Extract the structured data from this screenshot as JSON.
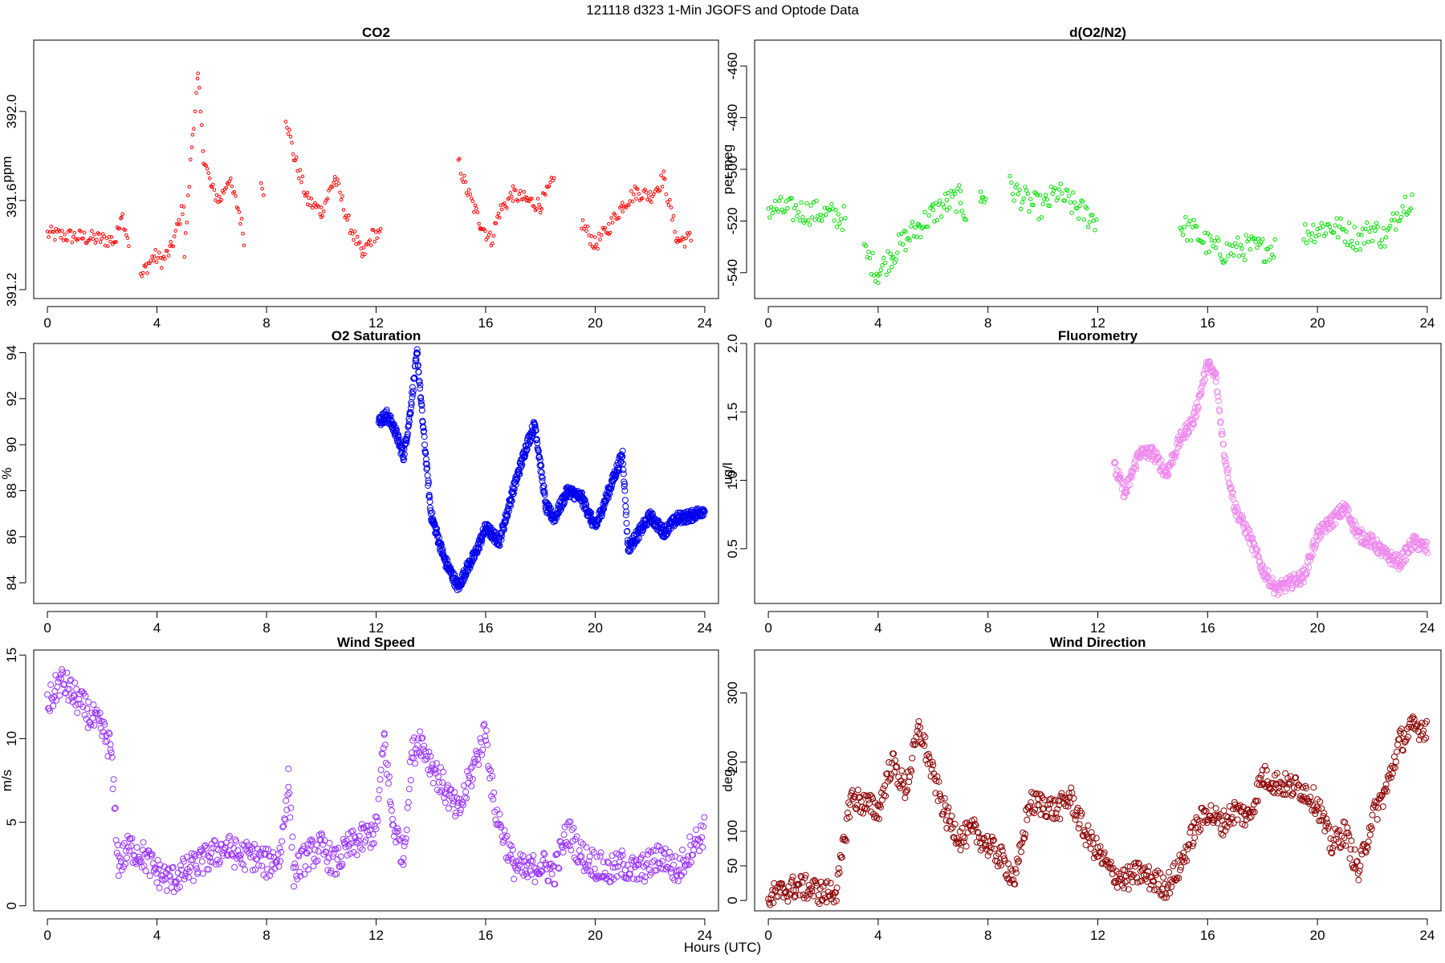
{
  "figure": {
    "title": "121118   d323   1-Min  JGOFS and Optode Data",
    "xlabel": "Hours (UTC)"
  },
  "chart_data": [
    {
      "id": "co2",
      "type": "scatter",
      "title": "CO2",
      "ylabel": "ppm",
      "color": "#ff0000",
      "xlim": [
        -0.5,
        24.5
      ],
      "ylim": [
        391.16,
        392.32
      ],
      "xticks": [
        0,
        4,
        8,
        12,
        16,
        20,
        24
      ],
      "yticks": [
        391.2,
        391.6,
        392.0
      ],
      "ytick_labels": [
        "391.2",
        "391.6",
        "392.0"
      ],
      "series": [
        {
          "x": [
            0,
            2.5,
            2.7,
            3.0
          ],
          "values": [
            391.45,
            391.42,
            391.55,
            391.4
          ],
          "name": "seg1"
        },
        {
          "x": [
            3.4,
            3.6,
            3.9,
            4.2,
            4.5,
            4.8,
            5.0
          ],
          "values": [
            391.25,
            391.3,
            391.35,
            391.33,
            391.38,
            391.5,
            391.6
          ],
          "name": "seg2"
        },
        {
          "x": [
            5.0,
            5.3,
            5.5,
            5.7,
            6.0,
            6.3,
            6.6,
            7.0,
            7.2
          ],
          "values": [
            391.35,
            391.9,
            392.15,
            391.8,
            391.65,
            391.6,
            391.7,
            391.55,
            391.42
          ],
          "name": "seg3"
        },
        {
          "x": [
            7.8,
            7.9
          ],
          "values": [
            391.67,
            391.65
          ],
          "name": "seg4"
        },
        {
          "x": [
            8.7,
            9.0,
            9.5,
            10.0,
            10.5,
            11.0,
            11.5,
            11.9,
            12.2
          ],
          "values": [
            391.98,
            391.8,
            391.6,
            391.55,
            391.7,
            391.5,
            391.35,
            391.45,
            391.44
          ],
          "name": "seg5"
        },
        {
          "x": [
            15.0,
            15.3,
            15.8,
            16.2,
            16.5,
            17.0,
            17.5,
            18.0,
            18.5
          ],
          "values": [
            391.78,
            391.65,
            391.5,
            391.42,
            391.55,
            391.63,
            391.6,
            391.58,
            391.69
          ],
          "name": "seg6"
        },
        {
          "x": [
            19.5,
            20.0,
            20.5,
            21.0,
            21.5,
            22.0,
            22.5,
            23.0,
            23.5
          ],
          "values": [
            391.5,
            391.4,
            391.48,
            391.58,
            391.64,
            391.62,
            391.7,
            391.42,
            391.43
          ],
          "name": "seg7"
        }
      ]
    },
    {
      "id": "do2n2",
      "type": "scatter",
      "title": "d(O2/N2)",
      "ylabel": "per meg",
      "color": "#00dd00",
      "xlim": [
        -0.5,
        24.5
      ],
      "ylim": [
        -550,
        -450
      ],
      "xticks": [
        0,
        4,
        8,
        12,
        16,
        20,
        24
      ],
      "yticks": [
        -540,
        -520,
        -500,
        -480,
        -460
      ],
      "ytick_labels": [
        "-540",
        "-520",
        "-500",
        "-480",
        "-460"
      ],
      "series": [
        {
          "x": [
            0,
            1,
            2,
            2.8
          ],
          "values": [
            -515,
            -516,
            -517,
            -519
          ],
          "name": "seg1"
        },
        {
          "x": [
            3.5,
            4.0,
            4.5,
            5.0,
            5.5,
            6.0,
            6.5,
            7.0,
            7.2
          ],
          "values": [
            -532,
            -540,
            -533,
            -527,
            -522,
            -517,
            -513,
            -511,
            -518
          ],
          "name": "seg2"
        },
        {
          "x": [
            7.8
          ],
          "values": [
            -510
          ],
          "name": "seg3"
        },
        {
          "x": [
            8.8,
            9.5,
            10.0,
            10.5,
            11.0,
            11.5,
            12.0
          ],
          "values": [
            -507,
            -513,
            -515,
            -509,
            -513,
            -517,
            -520
          ],
          "name": "seg4"
        },
        {
          "x": [
            15.0,
            15.5,
            16.0,
            16.5,
            17.0,
            17.5,
            18.0,
            18.5
          ],
          "values": [
            -522,
            -524,
            -529,
            -532,
            -531,
            -530,
            -531,
            -530
          ],
          "name": "seg5"
        },
        {
          "x": [
            19.5,
            20.0,
            20.5,
            21.0,
            21.5,
            22.0,
            22.5,
            23.0,
            23.5
          ],
          "values": [
            -525,
            -523,
            -522,
            -524,
            -527,
            -523,
            -527,
            -515,
            -510
          ],
          "name": "seg6"
        }
      ]
    },
    {
      "id": "o2sat",
      "type": "scatter",
      "title": "O2 Saturation",
      "ylabel": "%",
      "color": "#0000ee",
      "xlim": [
        -0.5,
        24.5
      ],
      "ylim": [
        83.1,
        94.4
      ],
      "xticks": [
        0,
        4,
        8,
        12,
        16,
        20,
        24
      ],
      "yticks": [
        84,
        86,
        88,
        90,
        92,
        94
      ],
      "ytick_labels": [
        "84",
        "86",
        "88",
        "90",
        "92",
        "94"
      ],
      "series": [
        {
          "x": [
            12.1,
            12.4,
            12.7,
            13.0,
            13.2,
            13.5,
            13.7,
            14.0,
            14.5,
            15.0,
            15.3,
            15.6,
            16.0,
            16.5,
            17.0,
            17.5,
            17.8,
            18.2,
            18.5,
            19.0,
            19.5,
            20.0,
            20.5,
            21.0,
            21.2,
            21.5,
            22.0,
            22.5,
            23.0,
            23.5,
            24.0
          ],
          "values": [
            91.0,
            91.3,
            90.6,
            89.5,
            91.0,
            94.0,
            91.0,
            87.0,
            85.0,
            83.8,
            84.6,
            85.2,
            86.4,
            85.8,
            88.0,
            90.0,
            90.9,
            87.3,
            86.8,
            88.0,
            87.7,
            86.4,
            88.0,
            89.6,
            85.5,
            86.0,
            86.9,
            86.2,
            86.8,
            86.9,
            87.2
          ],
          "name": "o2"
        }
      ]
    },
    {
      "id": "fluor",
      "type": "scatter",
      "title": "Fluorometry",
      "ylabel": "ug/l",
      "color": "#ee88ee",
      "xlim": [
        -0.5,
        24.5
      ],
      "ylim": [
        0.1,
        2.0
      ],
      "xticks": [
        0,
        4,
        8,
        12,
        16,
        20,
        24
      ],
      "yticks": [
        0.5,
        1.0,
        1.5,
        2.0
      ],
      "ytick_labels": [
        "0.5",
        "1.0",
        "1.5",
        "2.0"
      ],
      "series": [
        {
          "x": [
            12.6,
            13.0,
            13.5,
            14.0,
            14.5,
            15.0,
            15.5,
            16.0,
            16.3,
            16.6,
            17.0,
            17.5,
            18.0,
            18.5,
            19.0,
            19.5,
            20.0,
            20.5,
            21.0,
            21.5,
            22.0,
            22.5,
            23.0,
            23.5,
            24.0
          ],
          "values": [
            1.1,
            0.9,
            1.2,
            1.2,
            1.05,
            1.3,
            1.45,
            1.85,
            1.75,
            1.2,
            0.8,
            0.6,
            0.35,
            0.2,
            0.25,
            0.3,
            0.6,
            0.7,
            0.8,
            0.6,
            0.55,
            0.45,
            0.4,
            0.55,
            0.5
          ],
          "name": "fluor"
        }
      ]
    },
    {
      "id": "wspd",
      "type": "scatter",
      "title": "Wind Speed",
      "ylabel": "m/s",
      "color": "#9933ff",
      "xlim": [
        -0.5,
        24.5
      ],
      "ylim": [
        -0.3,
        15.3
      ],
      "xticks": [
        0,
        4,
        8,
        12,
        16,
        20,
        24
      ],
      "yticks": [
        0,
        5,
        10,
        15
      ],
      "ytick_labels": [
        "0",
        "5",
        "10",
        "15"
      ],
      "series": [
        {
          "x": [
            0,
            0.5,
            1.0,
            1.5,
            2.0,
            2.3,
            2.6,
            3.0,
            3.5,
            4.0,
            4.5,
            5.0,
            5.5,
            6.0,
            6.5,
            7.0,
            7.5,
            8.0,
            8.5,
            8.8,
            9.0,
            9.5,
            10.0,
            10.5,
            11.0,
            11.5,
            12.0,
            12.3,
            12.6,
            13.0,
            13.3,
            13.6,
            14.0,
            14.5,
            15.0,
            15.5,
            16.0,
            16.3,
            16.6,
            17.0,
            17.5,
            18.0,
            18.5,
            19.0,
            19.5,
            20.0,
            20.5,
            21.0,
            21.5,
            22.0,
            22.5,
            23.0,
            23.5,
            24.0
          ],
          "values": [
            12,
            13.5,
            12.5,
            11.5,
            10.5,
            9.5,
            2.5,
            3.5,
            3.0,
            2.0,
            1.5,
            2.0,
            2.5,
            3.0,
            3.5,
            3.0,
            3.0,
            2.5,
            3.0,
            7.5,
            2.0,
            3.0,
            3.5,
            2.5,
            3.5,
            4.0,
            4.5,
            10.0,
            5.0,
            3.0,
            9.0,
            10.0,
            8.5,
            7.0,
            5.5,
            8.0,
            10.5,
            6.0,
            4.5,
            2.5,
            2.0,
            2.5,
            2.0,
            4.5,
            3.0,
            2.5,
            2.0,
            2.5,
            2.0,
            2.5,
            3.0,
            2.0,
            3.5,
            4.5
          ],
          "name": "wspd"
        }
      ]
    },
    {
      "id": "wdir",
      "type": "scatter",
      "title": "Wind Direction",
      "ylabel": "deg",
      "color": "#8b0000",
      "xlim": [
        -0.5,
        24.5
      ],
      "ylim": [
        -15,
        362
      ],
      "xticks": [
        0,
        4,
        8,
        12,
        16,
        20,
        24
      ],
      "yticks": [
        0,
        50,
        100,
        200,
        300
      ],
      "ytick_labels": [
        "0",
        "50",
        "100",
        "200",
        "300"
      ],
      "series": [
        {
          "x": [
            0,
            0.5,
            1.0,
            1.5,
            2.0,
            2.5,
            3.0,
            3.5,
            4.0,
            4.5,
            5.0,
            5.5,
            6.0,
            6.5,
            7.0,
            7.5,
            8.0,
            8.5,
            9.0,
            9.5,
            10.0,
            10.5,
            11.0,
            11.5,
            12.0,
            12.5,
            13.0,
            13.5,
            14.0,
            14.5,
            15.0,
            15.5,
            16.0,
            16.5,
            17.0,
            17.5,
            18.0,
            18.5,
            19.0,
            19.5,
            20.0,
            20.5,
            21.0,
            21.5,
            22.0,
            22.5,
            23.0,
            23.5,
            24.0
          ],
          "values": [
            5,
            12,
            20,
            18,
            10,
            15,
            150,
            140,
            130,
            200,
            160,
            250,
            180,
            120,
            90,
            100,
            80,
            60,
            30,
            140,
            140,
            130,
            150,
            100,
            70,
            40,
            30,
            40,
            30,
            20,
            50,
            100,
            130,
            110,
            130,
            120,
            180,
            170,
            165,
            160,
            140,
            80,
            100,
            40,
            120,
            160,
            230,
            250,
            250
          ],
          "name": "wdir"
        }
      ]
    }
  ]
}
